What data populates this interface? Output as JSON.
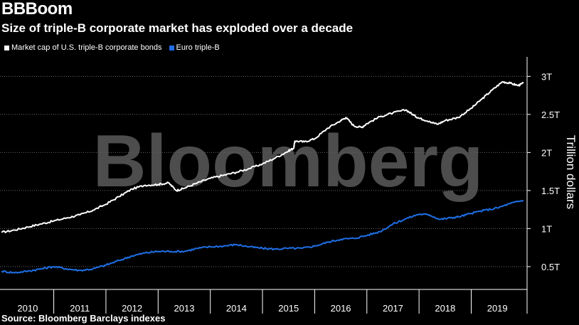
{
  "title": "BBBoom",
  "subtitle": "Size of triple-B corporate market has exploded over a decade",
  "source": "Source: Bloomberg Barclays indexes",
  "watermark": "Bloomberg",
  "colors": {
    "us": "#ffffff",
    "euro": "#1f6fe6",
    "grid": "#6a6a6a",
    "background": "#000000"
  },
  "chart_data": {
    "type": "line",
    "ylabel": "Trillion dollars",
    "ylim": [
      0.2,
      3.2
    ],
    "y_ticks": [
      0.5,
      1,
      1.5,
      2,
      2.5,
      3
    ],
    "y_tick_labels": [
      "0.5T",
      "1T",
      "1.5T",
      "2T",
      "2.5T",
      "3T"
    ],
    "x_range": [
      2009.97,
      2020.07
    ],
    "x_tick_labels": [
      "2010",
      "2011",
      "2012",
      "2013",
      "2014",
      "2015",
      "2016",
      "2017",
      "2018",
      "2019"
    ],
    "legend_position": "top-left",
    "grid": true,
    "series": [
      {
        "name": "Market cap of U.S. triple-B corporate bonds",
        "color": "#ffffff",
        "points": [
          [
            2010.0,
            0.95
          ],
          [
            2010.25,
            0.98
          ],
          [
            2010.5,
            1.02
          ],
          [
            2010.75,
            1.06
          ],
          [
            2011.0,
            1.1
          ],
          [
            2011.25,
            1.14
          ],
          [
            2011.5,
            1.18
          ],
          [
            2011.75,
            1.24
          ],
          [
            2012.0,
            1.32
          ],
          [
            2012.25,
            1.42
          ],
          [
            2012.5,
            1.52
          ],
          [
            2012.75,
            1.57
          ],
          [
            2013.0,
            1.58
          ],
          [
            2013.2,
            1.6
          ],
          [
            2013.35,
            1.5
          ],
          [
            2013.5,
            1.53
          ],
          [
            2013.75,
            1.6
          ],
          [
            2014.0,
            1.66
          ],
          [
            2014.25,
            1.7
          ],
          [
            2014.5,
            1.74
          ],
          [
            2014.75,
            1.79
          ],
          [
            2015.0,
            1.85
          ],
          [
            2015.25,
            1.93
          ],
          [
            2015.5,
            2.02
          ],
          [
            2015.6,
            2.06
          ],
          [
            2015.62,
            2.15
          ],
          [
            2015.8,
            2.14
          ],
          [
            2016.0,
            2.18
          ],
          [
            2016.25,
            2.32
          ],
          [
            2016.5,
            2.42
          ],
          [
            2016.6,
            2.46
          ],
          [
            2016.75,
            2.35
          ],
          [
            2016.9,
            2.33
          ],
          [
            2017.0,
            2.38
          ],
          [
            2017.25,
            2.47
          ],
          [
            2017.5,
            2.52
          ],
          [
            2017.75,
            2.56
          ],
          [
            2017.9,
            2.49
          ],
          [
            2018.0,
            2.45
          ],
          [
            2018.2,
            2.41
          ],
          [
            2018.35,
            2.37
          ],
          [
            2018.5,
            2.42
          ],
          [
            2018.75,
            2.46
          ],
          [
            2019.0,
            2.58
          ],
          [
            2019.2,
            2.7
          ],
          [
            2019.4,
            2.82
          ],
          [
            2019.6,
            2.93
          ],
          [
            2019.75,
            2.91
          ],
          [
            2019.9,
            2.88
          ],
          [
            2020.0,
            2.91
          ]
        ]
      },
      {
        "name": "Euro triple-B",
        "color": "#1f6fe6",
        "points": [
          [
            2010.0,
            0.44
          ],
          [
            2010.25,
            0.42
          ],
          [
            2010.5,
            0.44
          ],
          [
            2010.75,
            0.47
          ],
          [
            2011.0,
            0.5
          ],
          [
            2011.25,
            0.47
          ],
          [
            2011.5,
            0.45
          ],
          [
            2011.75,
            0.47
          ],
          [
            2012.0,
            0.52
          ],
          [
            2012.25,
            0.58
          ],
          [
            2012.5,
            0.64
          ],
          [
            2012.75,
            0.68
          ],
          [
            2013.0,
            0.7
          ],
          [
            2013.25,
            0.7
          ],
          [
            2013.5,
            0.7
          ],
          [
            2013.75,
            0.74
          ],
          [
            2014.0,
            0.76
          ],
          [
            2014.25,
            0.77
          ],
          [
            2014.5,
            0.79
          ],
          [
            2014.75,
            0.76
          ],
          [
            2015.0,
            0.74
          ],
          [
            2015.25,
            0.73
          ],
          [
            2015.5,
            0.74
          ],
          [
            2015.75,
            0.74
          ],
          [
            2016.0,
            0.77
          ],
          [
            2016.25,
            0.82
          ],
          [
            2016.5,
            0.86
          ],
          [
            2016.75,
            0.87
          ],
          [
            2017.0,
            0.91
          ],
          [
            2017.25,
            0.96
          ],
          [
            2017.5,
            1.06
          ],
          [
            2017.75,
            1.13
          ],
          [
            2018.0,
            1.19
          ],
          [
            2018.2,
            1.18
          ],
          [
            2018.4,
            1.12
          ],
          [
            2018.6,
            1.14
          ],
          [
            2018.8,
            1.16
          ],
          [
            2019.0,
            1.2
          ],
          [
            2019.25,
            1.24
          ],
          [
            2019.5,
            1.27
          ],
          [
            2019.75,
            1.33
          ],
          [
            2020.0,
            1.37
          ]
        ]
      }
    ]
  }
}
